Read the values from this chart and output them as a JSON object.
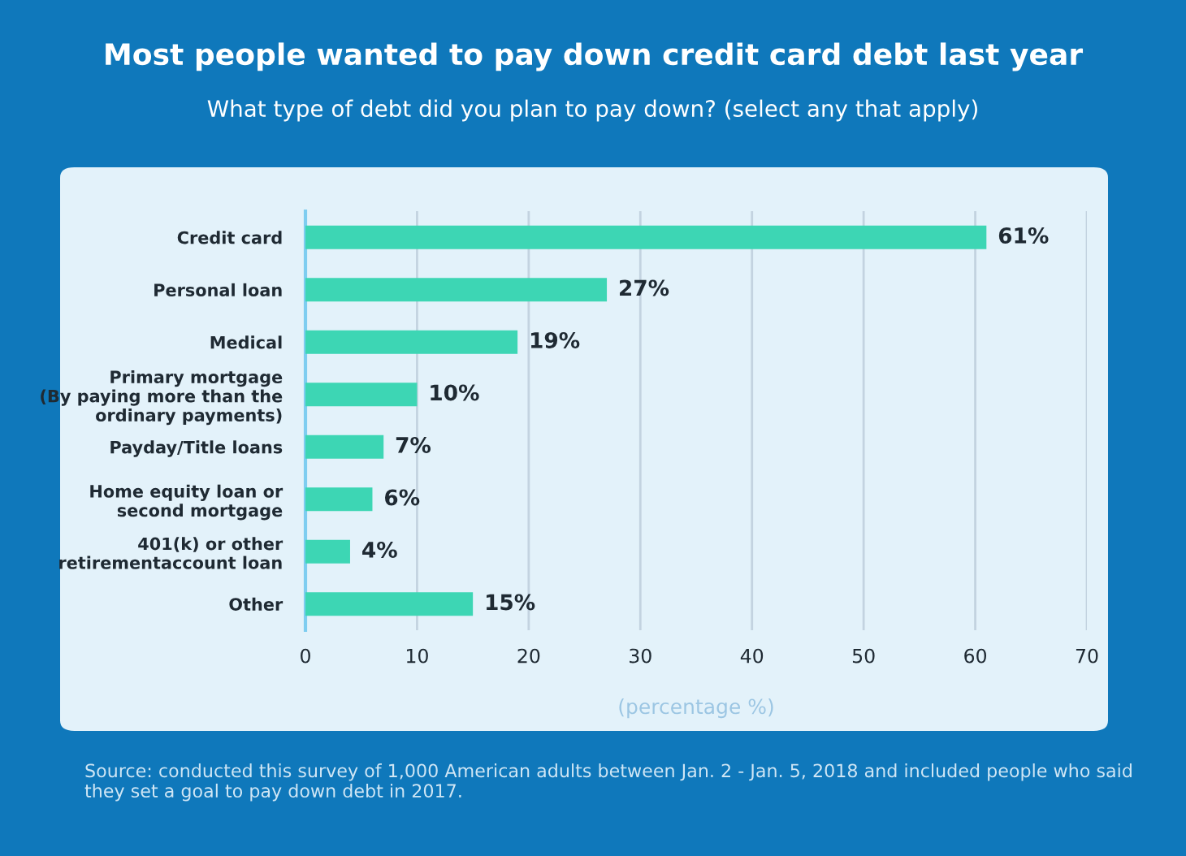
{
  "chart_data": {
    "type": "bar",
    "orientation": "horizontal",
    "title": "Most people wanted to pay down credit card debt last year",
    "subtitle": "What type of debt did you plan to pay down? (select any that apply)",
    "categories": [
      "Credit card",
      "Personal loan",
      "Medical",
      "Primary mortgage\n(By paying more than the\nordinary payments)",
      "Payday/Title loans",
      "Home equity loan or\nsecond mortgage",
      "401(k) or other\nretirementaccount loan",
      "Other"
    ],
    "values": [
      61,
      27,
      19,
      10,
      7,
      6,
      4,
      15
    ],
    "value_labels": [
      "61%",
      "27%",
      "19%",
      "10%",
      "7%",
      "6%",
      "4%",
      "15%"
    ],
    "color": "#3dd6b4",
    "xlim": [
      0,
      70
    ],
    "xticks": [
      0,
      10,
      20,
      30,
      40,
      50,
      60,
      70
    ],
    "xlabel": "(percentage %)",
    "grid": "x",
    "legend": false,
    "annotations": [
      "Source: conducted this survey of 1,000 American adults between Jan. 2 - Jan. 5, 2018 and included people who said they set a goal to pay down debt in 2017."
    ]
  }
}
